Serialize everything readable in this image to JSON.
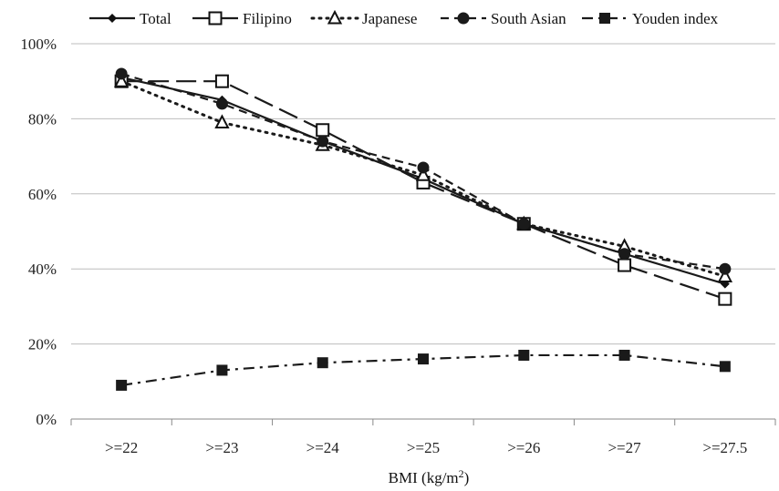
{
  "chart_data": {
    "type": "line",
    "title": "",
    "xlabel": "BMI (kg/m",
    "xlabel_sup": "2",
    "xlabel_close": ")",
    "ylabel": "",
    "categories": [
      ">=22",
      ">=23",
      ">=24",
      ">=25",
      ">=26",
      ">=27",
      ">=27.5"
    ],
    "yticks": [
      "0%",
      "20%",
      "40%",
      "60%",
      "80%",
      "100%"
    ],
    "ylim": [
      0,
      100
    ],
    "grid": true,
    "legend_position": "top",
    "series": [
      {
        "name": "Total",
        "marker": "diamond",
        "dash": "solid",
        "values": [
          91,
          85,
          74,
          64,
          52,
          44,
          36
        ]
      },
      {
        "name": "Filipino",
        "marker": "square-open",
        "dash": "longdash",
        "values": [
          90,
          90,
          77,
          63,
          52,
          41,
          32
        ]
      },
      {
        "name": "Japanese",
        "marker": "triangle-open",
        "dash": "dotted",
        "values": [
          90,
          79,
          73,
          65,
          52,
          46,
          38
        ]
      },
      {
        "name": "South Asian",
        "marker": "circle",
        "dash": "dash",
        "values": [
          92,
          84,
          74,
          67,
          52,
          44,
          40
        ]
      },
      {
        "name": "Youden index",
        "marker": "square",
        "dash": "dashdot",
        "values": [
          9,
          13,
          15,
          16,
          17,
          17,
          14
        ]
      }
    ]
  }
}
